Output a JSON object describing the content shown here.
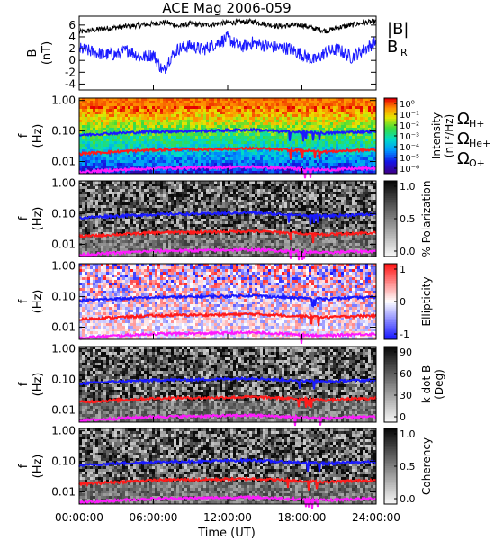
{
  "title": "ACE Mag 2006-059",
  "x_axis": {
    "label": "Time (UT)",
    "ticks": [
      "00:00:00",
      "06:00:00",
      "12:00:00",
      "18:00:00",
      "24:00:00"
    ]
  },
  "panel1": {
    "ylabel": "B",
    "yunit": "(nT)",
    "yticks": [
      "6",
      "4",
      "2",
      "0",
      "-2",
      "-4"
    ],
    "legend_b": "|B|",
    "legend_br": "B",
    "legend_br_sub": "R",
    "colors": {
      "b": "#000000",
      "br": "#1a1aff"
    }
  },
  "freq_ticks": [
    "1.00",
    "0.10",
    "0.01"
  ],
  "freq_ylabel": "f",
  "freq_yunit": "(Hz)",
  "panels": [
    {
      "id": "intensity",
      "cbar_label": "Intensity",
      "cbar_unit": "(nT²/Hz)",
      "cbar_ticks": [
        "10⁰",
        "10⁻¹",
        "10⁻²",
        "10⁻³",
        "10⁻⁴",
        "10⁻⁵",
        "10⁻⁶"
      ]
    },
    {
      "id": "polarization",
      "cbar_label": "% Polarization",
      "cbar_ticks": [
        "1.0",
        "0.5",
        "0.0"
      ]
    },
    {
      "id": "ellipticity",
      "cbar_label": "Ellipticity",
      "cbar_ticks": [
        "1",
        "0",
        "-1"
      ]
    },
    {
      "id": "kdotb",
      "cbar_label": "k dot B",
      "cbar_unit": "(Deg)",
      "cbar_ticks": [
        "90",
        "60",
        "30",
        "0"
      ]
    },
    {
      "id": "coherency",
      "cbar_label": "Coherency",
      "cbar_ticks": [
        "1.0",
        "0.5",
        "0.0"
      ]
    }
  ],
  "gyro_legend": [
    {
      "symbol": "Ω",
      "sub": "H+",
      "color": "#1a1aff"
    },
    {
      "symbol": "Ω",
      "sub": "He+",
      "color": "#ff1a1a"
    },
    {
      "symbol": "Ω",
      "sub": "O+",
      "color": "#ff1aff"
    }
  ],
  "chart_data": {
    "type": "line",
    "x_range_hours": [
      0,
      24
    ],
    "series": [
      {
        "name": "|B|",
        "x": [
          0,
          2,
          4,
          6,
          7,
          8,
          9,
          10,
          12,
          14,
          15,
          16,
          18,
          19,
          20,
          21,
          22,
          23,
          24
        ],
        "y": [
          4.8,
          5.4,
          5.8,
          6.2,
          6.5,
          5.8,
          6.2,
          6.0,
          6.4,
          6.6,
          6.2,
          5.8,
          6.0,
          5.4,
          5.0,
          5.6,
          6.0,
          6.4,
          6.6
        ]
      },
      {
        "name": "B",
        "x": [
          0,
          1,
          2,
          3,
          4,
          5,
          6,
          6.8,
          7.2,
          8,
          9,
          10,
          11,
          12,
          13,
          14,
          15,
          16,
          17,
          18,
          19,
          20,
          21,
          22,
          23,
          24
        ],
        "y": [
          2.0,
          1.5,
          1.0,
          1.0,
          1.8,
          0.5,
          1.0,
          -2.0,
          0.0,
          2.0,
          2.5,
          1.8,
          2.8,
          3.8,
          2.2,
          3.0,
          2.5,
          2.2,
          2.0,
          1.0,
          0.0,
          1.5,
          1.8,
          0.5,
          1.8,
          3.2
        ]
      },
      {
        "name": "ΩH+",
        "x": [
          0,
          2,
          4,
          6,
          8,
          10,
          12,
          14,
          16,
          18,
          20,
          22,
          24
        ],
        "y": [
          0.073,
          0.082,
          0.088,
          0.095,
          0.098,
          0.1,
          0.105,
          0.11,
          0.098,
          0.09,
          0.085,
          0.092,
          0.097
        ]
      },
      {
        "name": "ΩHe+",
        "x": [
          0,
          2,
          4,
          6,
          8,
          10,
          12,
          14,
          16,
          18,
          20,
          22,
          24
        ],
        "y": [
          0.018,
          0.02,
          0.022,
          0.024,
          0.025,
          0.025,
          0.026,
          0.027,
          0.025,
          0.023,
          0.021,
          0.023,
          0.024
        ]
      },
      {
        "name": "ΩO+",
        "x": [
          0,
          2,
          4,
          6,
          8,
          10,
          12,
          14,
          16,
          18,
          20,
          22,
          24
        ],
        "y": [
          0.0045,
          0.005,
          0.0055,
          0.006,
          0.0062,
          0.0063,
          0.0065,
          0.0067,
          0.0062,
          0.0057,
          0.0053,
          0.0058,
          0.006
        ]
      }
    ],
    "panel1_ylim": [
      -5,
      7.5
    ],
    "freq_ylim": [
      0.004,
      1.2
    ],
    "log_scale_freq": true,
    "grid": false
  }
}
